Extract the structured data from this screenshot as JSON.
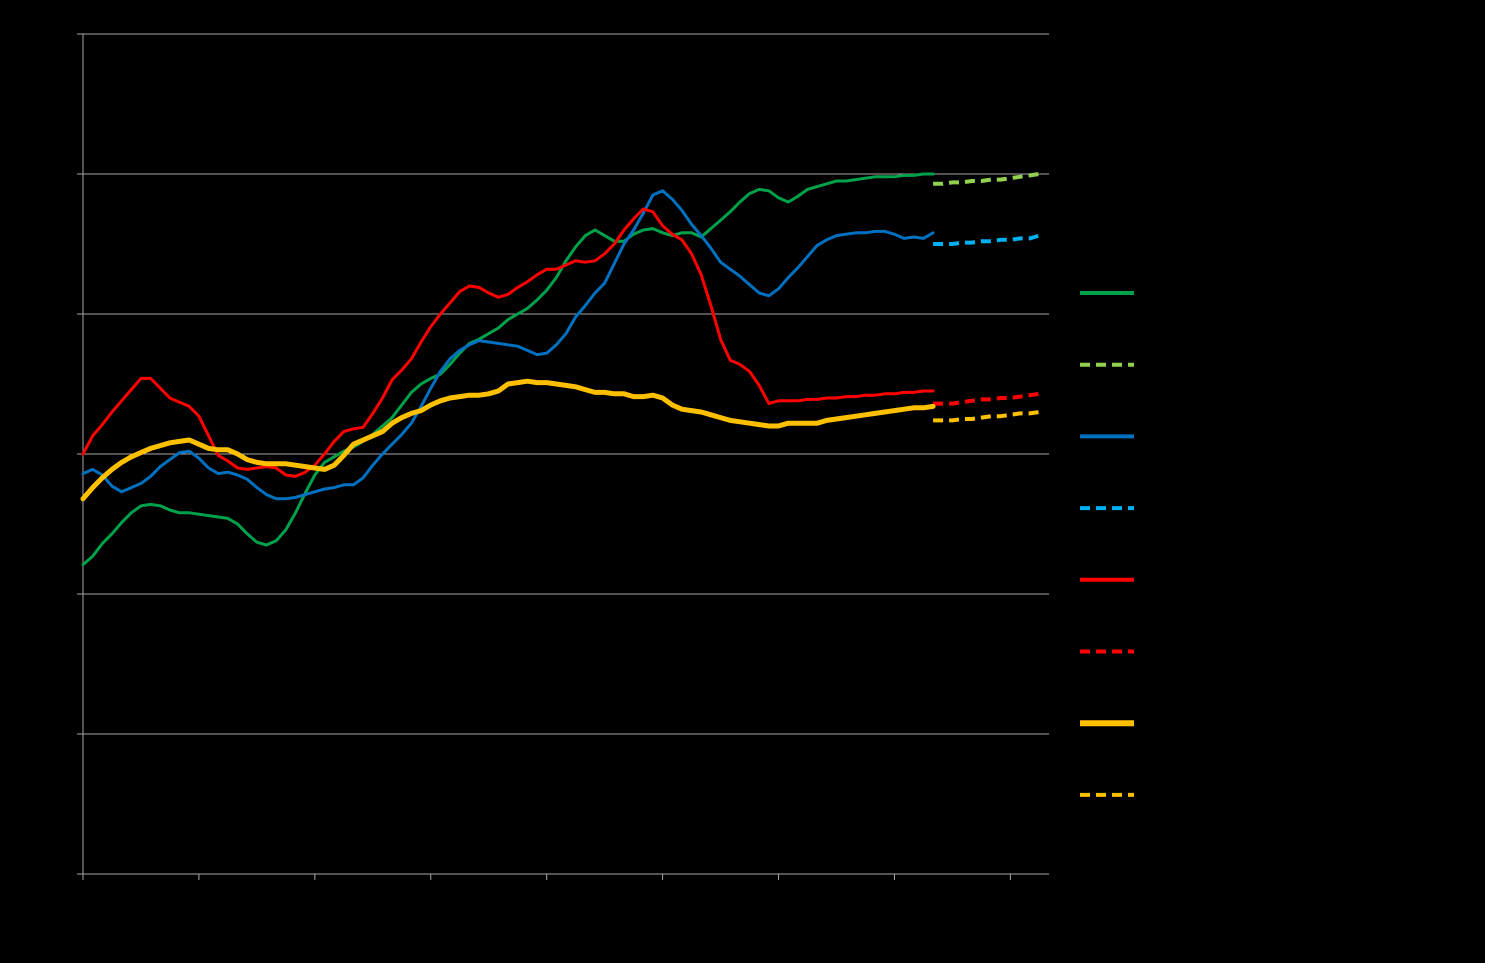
{
  "chart_data": {
    "type": "line",
    "title": "",
    "xlabel": "",
    "ylabel": "",
    "xlim": [
      0,
      100
    ],
    "ylim": [
      0,
      6
    ],
    "grid": true,
    "legend_position": "right",
    "background": "#000000",
    "gridline_color": "#a6a6a6",
    "series": [
      {
        "color": "#00a14b",
        "style": "solid",
        "width": 3,
        "x": [
          0,
          1,
          2,
          3,
          4,
          5,
          6,
          7,
          8,
          9,
          10,
          11,
          12,
          13,
          14,
          15,
          16,
          17,
          18,
          19,
          20,
          21,
          22,
          23,
          24,
          25,
          26,
          27,
          28,
          29,
          30,
          31,
          32,
          33,
          34,
          35,
          36,
          37,
          38,
          39,
          40,
          41,
          42,
          43,
          44,
          45,
          46,
          47,
          48,
          49,
          50,
          51,
          52,
          53,
          54,
          55,
          56,
          57,
          58,
          59,
          60,
          61,
          62,
          63,
          64,
          65,
          66,
          67,
          68,
          69,
          70,
          71,
          72,
          73,
          74,
          75,
          76,
          77,
          78,
          79,
          80,
          81,
          82,
          83,
          84,
          85,
          86,
          87,
          88
        ],
        "y": [
          2.21,
          2.27,
          2.36,
          2.43,
          2.51,
          2.58,
          2.63,
          2.64,
          2.63,
          2.6,
          2.58,
          2.58,
          2.57,
          2.56,
          2.55,
          2.54,
          2.5,
          2.43,
          2.37,
          2.35,
          2.38,
          2.46,
          2.58,
          2.72,
          2.85,
          2.94,
          2.98,
          3.02,
          3.05,
          3.09,
          3.14,
          3.2,
          3.26,
          3.35,
          3.44,
          3.5,
          3.54,
          3.57,
          3.64,
          3.72,
          3.79,
          3.82,
          3.86,
          3.9,
          3.96,
          4.0,
          4.04,
          4.1,
          4.17,
          4.26,
          4.38,
          4.48,
          4.56,
          4.6,
          4.56,
          4.52,
          4.52,
          4.57,
          4.6,
          4.61,
          4.58,
          4.56,
          4.58,
          4.58,
          4.55,
          4.61,
          4.67,
          4.73,
          4.8,
          4.86,
          4.89,
          4.88,
          4.83,
          4.8,
          4.84,
          4.89,
          4.91,
          4.93,
          4.95,
          4.95,
          4.96,
          4.97,
          4.98,
          4.98,
          4.98,
          4.99,
          4.99,
          5.0,
          5.0
        ]
      },
      {
        "color": "#92d050",
        "style": "dashed",
        "width": 4,
        "x": [
          88,
          89,
          90,
          91,
          92,
          93,
          94,
          95,
          96,
          97,
          98,
          99
        ],
        "y": [
          4.93,
          4.93,
          4.94,
          4.94,
          4.95,
          4.95,
          4.96,
          4.96,
          4.97,
          4.98,
          4.99,
          5.0
        ]
      },
      {
        "color": "#0070c0",
        "style": "solid",
        "width": 3,
        "x": [
          0,
          1,
          2,
          3,
          4,
          5,
          6,
          7,
          8,
          9,
          10,
          11,
          12,
          13,
          14,
          15,
          16,
          17,
          18,
          19,
          20,
          21,
          22,
          23,
          24,
          25,
          26,
          27,
          28,
          29,
          30,
          31,
          32,
          33,
          34,
          35,
          36,
          37,
          38,
          39,
          40,
          41,
          42,
          43,
          44,
          45,
          46,
          47,
          48,
          49,
          50,
          51,
          52,
          53,
          54,
          55,
          56,
          57,
          58,
          59,
          60,
          61,
          62,
          63,
          64,
          65,
          66,
          67,
          68,
          69,
          70,
          71,
          72,
          73,
          74,
          75,
          76,
          77,
          78,
          79,
          80,
          81,
          82,
          83,
          84,
          85,
          86,
          87,
          88
        ],
        "y": [
          2.86,
          2.89,
          2.85,
          2.77,
          2.73,
          2.76,
          2.79,
          2.84,
          2.91,
          2.96,
          3.01,
          3.02,
          2.97,
          2.9,
          2.86,
          2.87,
          2.85,
          2.82,
          2.76,
          2.71,
          2.68,
          2.68,
          2.69,
          2.71,
          2.73,
          2.75,
          2.76,
          2.78,
          2.78,
          2.83,
          2.92,
          3.0,
          3.07,
          3.14,
          3.22,
          3.34,
          3.47,
          3.59,
          3.68,
          3.74,
          3.78,
          3.81,
          3.8,
          3.79,
          3.78,
          3.77,
          3.74,
          3.71,
          3.72,
          3.78,
          3.86,
          3.98,
          4.06,
          4.15,
          4.22,
          4.36,
          4.5,
          4.6,
          4.72,
          4.85,
          4.88,
          4.82,
          4.74,
          4.64,
          4.56,
          4.47,
          4.37,
          4.32,
          4.27,
          4.21,
          4.15,
          4.13,
          4.18,
          4.26,
          4.33,
          4.41,
          4.49,
          4.53,
          4.56,
          4.57,
          4.58,
          4.58,
          4.59,
          4.59,
          4.57,
          4.54,
          4.55,
          4.54,
          4.58
        ]
      },
      {
        "color": "#00b0f0",
        "style": "dashed",
        "width": 4,
        "x": [
          88,
          89,
          90,
          91,
          92,
          93,
          94,
          95,
          96,
          97,
          98,
          99
        ],
        "y": [
          4.5,
          4.5,
          4.5,
          4.51,
          4.51,
          4.52,
          4.52,
          4.53,
          4.53,
          4.54,
          4.54,
          4.56
        ]
      },
      {
        "color": "#ff0000",
        "style": "solid",
        "width": 3,
        "x": [
          0,
          1,
          2,
          3,
          4,
          5,
          6,
          7,
          8,
          9,
          10,
          11,
          12,
          13,
          14,
          15,
          16,
          17,
          18,
          19,
          20,
          21,
          22,
          23,
          24,
          25,
          26,
          27,
          28,
          29,
          30,
          31,
          32,
          33,
          34,
          35,
          36,
          37,
          38,
          39,
          40,
          41,
          42,
          43,
          44,
          45,
          46,
          47,
          48,
          49,
          50,
          51,
          52,
          53,
          54,
          55,
          56,
          57,
          58,
          59,
          60,
          61,
          62,
          63,
          64,
          65,
          66,
          67,
          68,
          69,
          70,
          71,
          72,
          73,
          74,
          75,
          76,
          77,
          78,
          79,
          80,
          81,
          82,
          83,
          84,
          85,
          86,
          87,
          88
        ],
        "y": [
          3.0,
          3.13,
          3.21,
          3.3,
          3.38,
          3.46,
          3.54,
          3.54,
          3.47,
          3.4,
          3.37,
          3.34,
          3.27,
          3.13,
          2.99,
          2.95,
          2.9,
          2.89,
          2.9,
          2.91,
          2.9,
          2.85,
          2.84,
          2.87,
          2.92,
          3.0,
          3.09,
          3.16,
          3.18,
          3.19,
          3.29,
          3.4,
          3.53,
          3.6,
          3.68,
          3.8,
          3.91,
          4.0,
          4.08,
          4.16,
          4.2,
          4.19,
          4.15,
          4.12,
          4.14,
          4.19,
          4.23,
          4.28,
          4.32,
          4.32,
          4.35,
          4.38,
          4.37,
          4.38,
          4.43,
          4.5,
          4.6,
          4.68,
          4.75,
          4.73,
          4.63,
          4.57,
          4.53,
          4.43,
          4.28,
          4.06,
          3.82,
          3.67,
          3.64,
          3.59,
          3.49,
          3.36,
          3.38,
          3.38,
          3.38,
          3.39,
          3.39,
          3.4,
          3.4,
          3.41,
          3.41,
          3.42,
          3.42,
          3.43,
          3.43,
          3.44,
          3.44,
          3.45,
          3.45
        ]
      },
      {
        "color": "#ff0000",
        "style": "dashed",
        "width": 4,
        "x": [
          88,
          89,
          90,
          91,
          92,
          93,
          94,
          95,
          96,
          97,
          98,
          99
        ],
        "y": [
          3.36,
          3.36,
          3.36,
          3.37,
          3.38,
          3.39,
          3.39,
          3.4,
          3.4,
          3.41,
          3.42,
          3.43
        ]
      },
      {
        "color": "#ffc000",
        "style": "solid",
        "width": 5,
        "x": [
          0,
          1,
          2,
          3,
          4,
          5,
          6,
          7,
          8,
          9,
          10,
          11,
          12,
          13,
          14,
          15,
          16,
          17,
          18,
          19,
          20,
          21,
          22,
          23,
          24,
          25,
          26,
          27,
          28,
          29,
          30,
          31,
          32,
          33,
          34,
          35,
          36,
          37,
          38,
          39,
          40,
          41,
          42,
          43,
          44,
          45,
          46,
          47,
          48,
          49,
          50,
          51,
          52,
          53,
          54,
          55,
          56,
          57,
          58,
          59,
          60,
          61,
          62,
          63,
          64,
          65,
          66,
          67,
          68,
          69,
          70,
          71,
          72,
          73,
          74,
          75,
          76,
          77,
          78,
          79,
          80,
          81,
          82,
          83,
          84,
          85,
          86,
          87,
          88
        ],
        "y": [
          2.68,
          2.76,
          2.83,
          2.89,
          2.94,
          2.98,
          3.01,
          3.04,
          3.06,
          3.08,
          3.09,
          3.1,
          3.07,
          3.04,
          3.03,
          3.03,
          3.0,
          2.96,
          2.94,
          2.93,
          2.93,
          2.93,
          2.92,
          2.91,
          2.9,
          2.89,
          2.92,
          2.99,
          3.07,
          3.1,
          3.13,
          3.16,
          3.22,
          3.26,
          3.29,
          3.31,
          3.35,
          3.38,
          3.4,
          3.41,
          3.42,
          3.42,
          3.43,
          3.45,
          3.5,
          3.51,
          3.52,
          3.51,
          3.51,
          3.5,
          3.49,
          3.48,
          3.46,
          3.44,
          3.44,
          3.43,
          3.43,
          3.41,
          3.41,
          3.42,
          3.4,
          3.35,
          3.32,
          3.31,
          3.3,
          3.28,
          3.26,
          3.24,
          3.23,
          3.22,
          3.21,
          3.2,
          3.2,
          3.22,
          3.22,
          3.22,
          3.22,
          3.24,
          3.25,
          3.26,
          3.27,
          3.28,
          3.29,
          3.3,
          3.31,
          3.32,
          3.33,
          3.33,
          3.34
        ]
      },
      {
        "color": "#ffc000",
        "style": "dashed",
        "width": 4,
        "x": [
          88,
          89,
          90,
          91,
          92,
          93,
          94,
          95,
          96,
          97,
          98,
          99
        ],
        "y": [
          3.24,
          3.24,
          3.24,
          3.25,
          3.25,
          3.26,
          3.27,
          3.27,
          3.28,
          3.29,
          3.29,
          3.3
        ]
      }
    ]
  }
}
